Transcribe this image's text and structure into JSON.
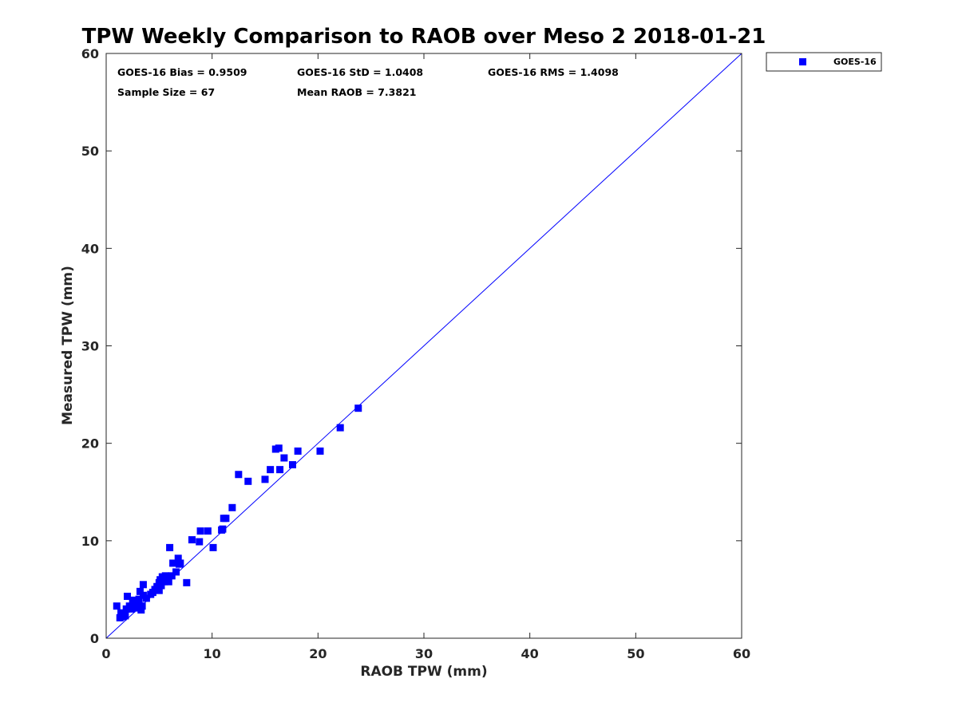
{
  "colors": {
    "series": "#0000ff",
    "axis": "#262626",
    "frame": "#000000"
  },
  "stats": {
    "bias": "GOES-16 Bias = 0.9509",
    "std": "GOES-16 StD = 1.0408",
    "rms": "GOES-16 RMS = 1.4098",
    "sample": "Sample Size = 67",
    "mean": "Mean RAOB = 7.3821"
  },
  "chart_data": {
    "type": "scatter",
    "title": "TPW Weekly Comparison to RAOB over Meso 2 2018-01-21",
    "xlabel": "RAOB TPW (mm)",
    "ylabel": "Measured TPW (mm)",
    "xlim": [
      0,
      60
    ],
    "ylim": [
      0,
      60
    ],
    "xticks": [
      0,
      10,
      20,
      30,
      40,
      50,
      60
    ],
    "yticks": [
      0,
      10,
      20,
      30,
      40,
      50,
      60
    ],
    "reference_line": {
      "x": [
        0,
        60
      ],
      "y": [
        0,
        60
      ]
    },
    "legend": {
      "entries": [
        "GOES-16"
      ],
      "placement": "outside-top-right"
    },
    "series": [
      {
        "name": "GOES-16",
        "points": [
          [
            1.0,
            3.3
          ],
          [
            1.3,
            2.1
          ],
          [
            1.4,
            2.6
          ],
          [
            1.6,
            2.2
          ],
          [
            1.8,
            2.3
          ],
          [
            1.9,
            3.0
          ],
          [
            2.0,
            4.3
          ],
          [
            2.2,
            3.3
          ],
          [
            2.4,
            3.0
          ],
          [
            2.5,
            3.9
          ],
          [
            2.7,
            3.2
          ],
          [
            2.8,
            3.8
          ],
          [
            3.0,
            3.1
          ],
          [
            3.1,
            4.0
          ],
          [
            3.2,
            4.8
          ],
          [
            3.3,
            2.9
          ],
          [
            3.4,
            3.3
          ],
          [
            3.5,
            4.4
          ],
          [
            3.5,
            5.5
          ],
          [
            3.8,
            4.1
          ],
          [
            4.4,
            4.7
          ],
          [
            4.6,
            5.0
          ],
          [
            4.8,
            5.3
          ],
          [
            5.0,
            5.7
          ],
          [
            5.0,
            4.9
          ],
          [
            5.1,
            6.0
          ],
          [
            5.2,
            5.4
          ],
          [
            5.3,
            6.3
          ],
          [
            5.5,
            5.8
          ],
          [
            5.6,
            6.4
          ],
          [
            5.8,
            6.1
          ],
          [
            5.9,
            5.8
          ],
          [
            6.0,
            9.3
          ],
          [
            6.2,
            6.4
          ],
          [
            6.3,
            7.7
          ],
          [
            6.6,
            6.8
          ],
          [
            6.8,
            8.2
          ],
          [
            7.0,
            7.7
          ],
          [
            7.6,
            5.7
          ],
          [
            8.1,
            10.1
          ],
          [
            8.8,
            9.9
          ],
          [
            8.9,
            11.0
          ],
          [
            9.6,
            11.0
          ],
          [
            10.1,
            9.3
          ],
          [
            10.9,
            11.1
          ],
          [
            11.1,
            12.3
          ],
          [
            11.3,
            12.3
          ],
          [
            11.9,
            13.4
          ],
          [
            12.5,
            16.8
          ],
          [
            13.4,
            16.1
          ],
          [
            15.0,
            16.3
          ],
          [
            15.5,
            17.3
          ],
          [
            16.0,
            19.4
          ],
          [
            16.3,
            19.5
          ],
          [
            16.4,
            17.3
          ],
          [
            16.8,
            18.5
          ],
          [
            17.6,
            17.8
          ],
          [
            18.1,
            19.2
          ],
          [
            20.2,
            19.2
          ],
          [
            22.1,
            21.6
          ],
          [
            23.8,
            23.6
          ],
          [
            4.2,
            4.5
          ],
          [
            5.4,
            6.2
          ],
          [
            2.6,
            3.5
          ],
          [
            3.0,
            3.6
          ],
          [
            6.9,
            7.6
          ],
          [
            11.0,
            11.2
          ]
        ]
      }
    ]
  }
}
